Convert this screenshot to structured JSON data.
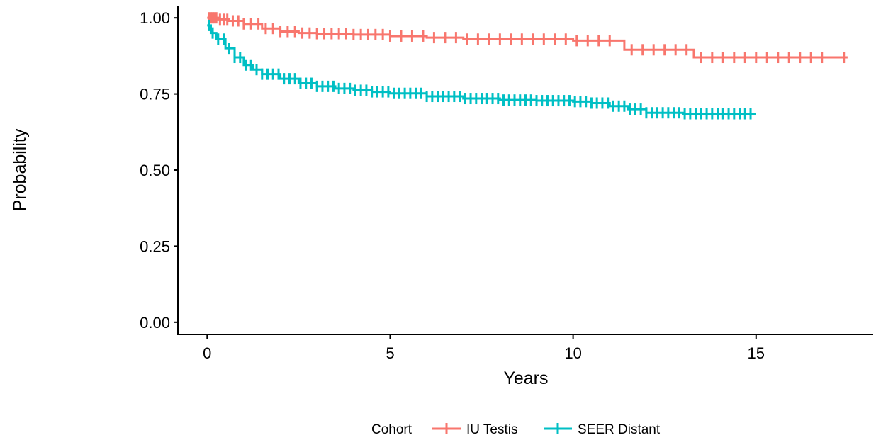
{
  "chart_data": {
    "type": "line",
    "title": "",
    "xlabel": "Years",
    "ylabel": "Probability",
    "xlim": [
      -0.8,
      18.2
    ],
    "ylim": [
      -0.04,
      1.04
    ],
    "x_ticks": [
      0,
      5,
      10,
      15
    ],
    "x_tick_labels": [
      "0",
      "5",
      "10",
      "15"
    ],
    "y_ticks": [
      0,
      0.25,
      0.5,
      0.75,
      1.0
    ],
    "y_tick_labels": [
      "0.00",
      "0.25",
      "0.50",
      "0.75",
      "1.00"
    ],
    "grid": false,
    "legend": {
      "title": "Cohort",
      "position": "bottom"
    },
    "series": [
      {
        "name": "IU Testis",
        "color": "#F8766D",
        "x": [
          0,
          0.3,
          0.6,
          1.0,
          1.5,
          2.0,
          2.5,
          3.0,
          4.0,
          5.0,
          6.0,
          7.0,
          8.0,
          9.0,
          10.0,
          11.0,
          11.4,
          12.0,
          13.0,
          13.3,
          14.0,
          15.0,
          16.0,
          17.5
        ],
        "y": [
          1.0,
          0.995,
          0.99,
          0.98,
          0.965,
          0.955,
          0.95,
          0.948,
          0.945,
          0.94,
          0.935,
          0.93,
          0.93,
          0.93,
          0.925,
          0.925,
          0.895,
          0.895,
          0.895,
          0.87,
          0.87,
          0.87,
          0.87,
          0.87
        ],
        "censor_x": [
          0.05,
          0.1,
          0.15,
          0.2,
          0.25,
          0.35,
          0.45,
          0.55,
          0.7,
          0.85,
          1.0,
          1.2,
          1.4,
          1.6,
          1.8,
          2.0,
          2.2,
          2.4,
          2.6,
          2.8,
          3.0,
          3.2,
          3.4,
          3.6,
          3.8,
          4.0,
          4.2,
          4.4,
          4.6,
          4.8,
          5.0,
          5.3,
          5.6,
          5.9,
          6.2,
          6.5,
          6.8,
          7.1,
          7.4,
          7.7,
          8.0,
          8.3,
          8.6,
          8.9,
          9.2,
          9.5,
          9.8,
          10.1,
          10.4,
          10.7,
          11.0,
          11.6,
          11.9,
          12.2,
          12.5,
          12.8,
          13.1,
          13.5,
          13.8,
          14.1,
          14.4,
          14.7,
          15.0,
          15.3,
          15.6,
          15.9,
          16.2,
          16.5,
          16.8,
          17.4
        ]
      },
      {
        "name": "SEER Distant",
        "color": "#00BFC4",
        "x": [
          0,
          0.1,
          0.25,
          0.5,
          0.75,
          1.0,
          1.25,
          1.5,
          2.0,
          2.5,
          3.0,
          3.5,
          4.0,
          4.5,
          5.0,
          6.0,
          7.0,
          8.0,
          9.0,
          10.0,
          10.5,
          11.0,
          11.5,
          12.0,
          13.0,
          14.0,
          15.0
        ],
        "y": [
          0.975,
          0.95,
          0.93,
          0.9,
          0.87,
          0.845,
          0.83,
          0.815,
          0.8,
          0.785,
          0.775,
          0.768,
          0.762,
          0.757,
          0.752,
          0.742,
          0.735,
          0.73,
          0.728,
          0.725,
          0.72,
          0.71,
          0.7,
          0.688,
          0.685,
          0.685,
          0.685
        ],
        "censor_x": [
          0.05,
          0.15,
          0.3,
          0.45,
          0.6,
          0.75,
          0.9,
          1.05,
          1.2,
          1.35,
          1.5,
          1.65,
          1.8,
          1.95,
          2.1,
          2.25,
          2.4,
          2.55,
          2.7,
          2.85,
          3.0,
          3.15,
          3.3,
          3.45,
          3.6,
          3.75,
          3.9,
          4.05,
          4.2,
          4.35,
          4.5,
          4.65,
          4.8,
          4.95,
          5.1,
          5.25,
          5.4,
          5.55,
          5.7,
          5.85,
          6.0,
          6.15,
          6.3,
          6.45,
          6.6,
          6.75,
          6.9,
          7.05,
          7.2,
          7.35,
          7.5,
          7.65,
          7.8,
          7.95,
          8.1,
          8.25,
          8.4,
          8.55,
          8.7,
          8.85,
          9.0,
          9.15,
          9.3,
          9.45,
          9.6,
          9.75,
          9.9,
          10.05,
          10.2,
          10.35,
          10.5,
          10.65,
          10.8,
          10.95,
          11.1,
          11.25,
          11.4,
          11.55,
          11.7,
          11.85,
          12.0,
          12.15,
          12.3,
          12.45,
          12.6,
          12.75,
          12.9,
          13.05,
          13.2,
          13.35,
          13.5,
          13.65,
          13.8,
          13.95,
          14.1,
          14.25,
          14.4,
          14.55,
          14.7,
          14.85
        ]
      }
    ]
  }
}
